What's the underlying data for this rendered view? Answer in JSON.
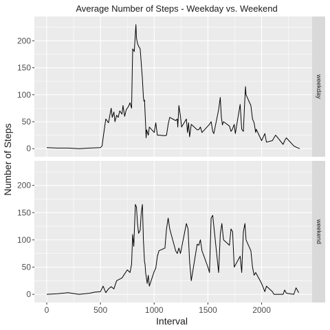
{
  "chart_data": {
    "type": "line",
    "title": "Average Number of Steps - Weekday vs. Weekend",
    "xlabel": "Interval",
    "ylabel": "Number of Steps",
    "xlim": [
      -115,
      2470
    ],
    "ylim": [
      -15,
      245
    ],
    "x_ticks": [
      0,
      500,
      1000,
      1500,
      2000
    ],
    "y_ticks": [
      0,
      50,
      100,
      150,
      200
    ],
    "grid": true,
    "facet_by": "strip-right",
    "colors": {
      "panel": "#ebebeb",
      "strip": "#d9d9d9",
      "line": "#000000",
      "grid": "#ffffff"
    },
    "panels": [
      {
        "label": "weekday",
        "x": [
          0,
          100,
          200,
          300,
          400,
          500,
          515,
          525,
          550,
          575,
          600,
          610,
          625,
          635,
          650,
          665,
          680,
          700,
          710,
          725,
          740,
          760,
          775,
          790,
          800,
          815,
          830,
          835,
          845,
          855,
          870,
          890,
          900,
          905,
          910,
          920,
          925,
          930,
          945,
          955,
          1000,
          1015,
          1030,
          1045,
          1100,
          1115,
          1130,
          1145,
          1200,
          1215,
          1220,
          1230,
          1245,
          1255,
          1300,
          1310,
          1320,
          1330,
          1345,
          1400,
          1415,
          1430,
          1445,
          1500,
          1515,
          1530,
          1545,
          1555,
          1600,
          1615,
          1625,
          1635,
          1645,
          1700,
          1715,
          1725,
          1745,
          1755,
          1800,
          1815,
          1830,
          1840,
          1850,
          1855,
          1900,
          1915,
          1930,
          1945,
          1950,
          2000,
          2030,
          2045,
          2100,
          2115,
          2130,
          2200,
          2215,
          2230,
          2300,
          2330,
          2355
        ],
        "values": [
          2,
          1,
          1,
          0,
          1,
          2,
          5,
          20,
          55,
          48,
          75,
          58,
          68,
          50,
          62,
          58,
          70,
          64,
          80,
          60,
          72,
          78,
          85,
          75,
          185,
          180,
          230,
          205,
          195,
          190,
          185,
          130,
          95,
          88,
          90,
          45,
          20,
          35,
          25,
          40,
          30,
          48,
          25,
          25,
          24,
          25,
          45,
          58,
          52,
          55,
          40,
          80,
          60,
          40,
          55,
          30,
          48,
          22,
          45,
          35,
          35,
          40,
          30,
          42,
          45,
          50,
          32,
          28,
          72,
          95,
          60,
          44,
          50,
          42,
          32,
          35,
          45,
          28,
          82,
          36,
          32,
          75,
          115,
          100,
          80,
          55,
          48,
          30,
          36,
          15,
          28,
          12,
          15,
          20,
          25,
          8,
          15,
          20,
          5,
          2,
          0
        ]
      },
      {
        "label": "weekend",
        "x": [
          0,
          100,
          200,
          300,
          400,
          450,
          500,
          525,
          550,
          575,
          600,
          625,
          650,
          700,
          750,
          775,
          790,
          800,
          810,
          825,
          835,
          845,
          855,
          870,
          880,
          890,
          900,
          910,
          915,
          920,
          935,
          945,
          955,
          1000,
          1015,
          1030,
          1045,
          1100,
          1115,
          1130,
          1145,
          1200,
          1215,
          1230,
          1245,
          1300,
          1315,
          1330,
          1345,
          1400,
          1415,
          1430,
          1445,
          1500,
          1515,
          1530,
          1545,
          1600,
          1615,
          1630,
          1645,
          1700,
          1715,
          1730,
          1745,
          1800,
          1815,
          1830,
          1845,
          1855,
          1900,
          1915,
          1930,
          1945,
          2000,
          2030,
          2045,
          2100,
          2115,
          2130,
          2200,
          2215,
          2230,
          2300,
          2320,
          2345
        ],
        "values": [
          0,
          1,
          3,
          0,
          2,
          4,
          5,
          15,
          3,
          10,
          14,
          10,
          25,
          30,
          45,
          40,
          55,
          110,
          88,
          165,
          160,
          130,
          112,
          118,
          150,
          165,
          100,
          60,
          55,
          40,
          20,
          35,
          15,
          42,
          48,
          70,
          80,
          85,
          120,
          140,
          120,
          80,
          75,
          85,
          75,
          130,
          120,
          60,
          25,
          92,
          90,
          100,
          80,
          50,
          40,
          140,
          145,
          40,
          110,
          130,
          100,
          90,
          120,
          115,
          50,
          70,
          40,
          115,
          130,
          100,
          80,
          50,
          35,
          40,
          20,
          5,
          15,
          5,
          0,
          0,
          0,
          8,
          2,
          0,
          12,
          3
        ]
      }
    ]
  }
}
